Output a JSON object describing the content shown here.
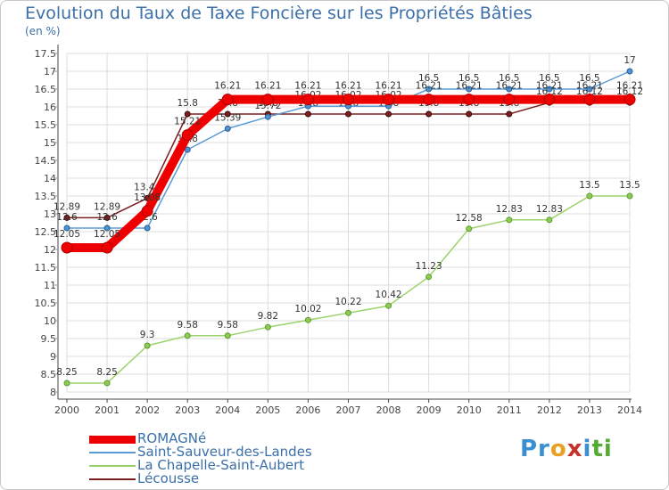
{
  "header": {
    "title": "Evolution du Taux de Taxe Foncière sur les Propriétés Bâties",
    "unit": "(en %)"
  },
  "logo": {
    "text": "Proxiti",
    "parts": [
      "Pr",
      "o",
      "x",
      "i",
      "ti"
    ]
  },
  "chart_data": {
    "type": "line",
    "title": "Evolution du Taux de Taxe Foncière sur les Propriétés Bâties",
    "ylabel": "(en %)",
    "xlabel": "",
    "x": [
      "2000",
      "2001",
      "2002",
      "2003",
      "2004",
      "2005",
      "2006",
      "2007",
      "2008",
      "2009",
      "2010",
      "2011",
      "2012",
      "2013",
      "2014"
    ],
    "ylim": [
      8,
      17.5
    ],
    "yticks": [
      "8",
      "8.5",
      "9",
      "9.5",
      "10",
      "10.5",
      "11",
      "11.5",
      "12",
      "12.5",
      "13",
      "13.5",
      "14",
      "14.5",
      "15",
      "15.5",
      "16",
      "16.5",
      "17",
      "17.5"
    ],
    "grid": true,
    "legend_position": "bottom-left",
    "series": [
      {
        "name": "Lécousse",
        "color": "#7a2020",
        "values": [
          12.89,
          12.89,
          13.44,
          15.8,
          15.8,
          15.8,
          15.8,
          15.8,
          15.8,
          15.8,
          15.8,
          15.8,
          16.12,
          16.12,
          16.12
        ],
        "labels": [
          "12.89",
          "12.89",
          "13.44",
          "15.8",
          "15.8",
          "15.8",
          "15.8",
          "15.8",
          "15.8",
          "15.8",
          "15.8",
          "15.8",
          "16.12",
          "16.12",
          "16.12"
        ]
      },
      {
        "name": "Saint-Sauveur-des-Landes",
        "color": "#5b9bd5",
        "values": [
          12.6,
          12.6,
          12.6,
          14.8,
          15.39,
          15.72,
          16.02,
          16.02,
          16.02,
          16.5,
          16.5,
          16.5,
          16.5,
          16.5,
          17
        ],
        "labels": [
          "12.6",
          "12.6",
          "12.6",
          "14.8",
          "15.39",
          "15.72",
          "16.02",
          "16.02",
          "16.02",
          "16.5",
          "16.5",
          "16.5",
          "16.5",
          "16.5",
          "17"
        ]
      },
      {
        "name": "La Chapelle-Saint-Aubert",
        "color": "#9bd36b",
        "values": [
          8.25,
          8.25,
          9.3,
          9.58,
          9.58,
          9.82,
          10.02,
          10.22,
          10.42,
          11.23,
          12.58,
          12.83,
          12.83,
          13.5,
          13.5
        ],
        "labels": [
          "8.25",
          "8.25",
          "9.3",
          "9.58",
          "9.58",
          "9.82",
          "10.02",
          "10.22",
          "10.42",
          "11.23",
          "12.58",
          "12.83",
          "12.83",
          "13.5",
          "13.5"
        ]
      },
      {
        "name": "ROMAGNé",
        "color": "#ee0000",
        "values": [
          12.05,
          12.05,
          13.08,
          15.21,
          16.21,
          16.21,
          16.21,
          16.21,
          16.21,
          16.21,
          16.21,
          16.21,
          16.21,
          16.21,
          16.21
        ],
        "labels": [
          "12.05",
          "12.05",
          "13.08",
          "15.21",
          "16.21",
          "16.21",
          "16.21",
          "16.21",
          "16.21",
          "16.21",
          "16.21",
          "16.21",
          "16.21",
          "16.21",
          "16.21"
        ]
      }
    ],
    "legend": [
      "ROMAGNé",
      "Saint-Sauveur-des-Landes",
      "La Chapelle-Saint-Aubert",
      "Lécousse"
    ]
  }
}
